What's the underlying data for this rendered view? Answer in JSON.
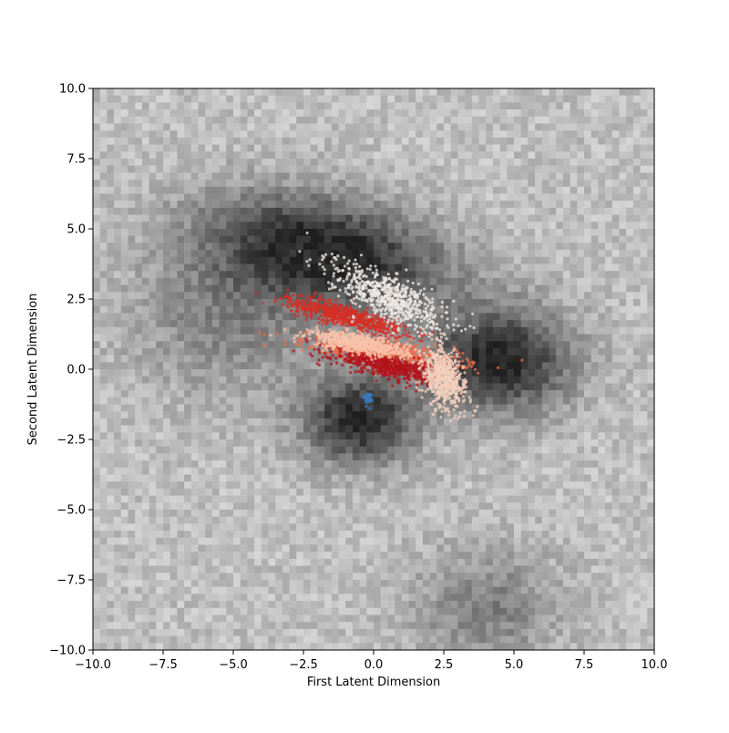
{
  "chart_data": {
    "type": "heatmap",
    "title": "",
    "xlabel": "First Latent Dimension",
    "ylabel": "Second Latent Dimension",
    "xlim": [
      -10.0,
      10.0
    ],
    "ylim": [
      -10.0,
      10.0
    ],
    "x_ticks": [
      "−10.0",
      "−7.5",
      "−5.0",
      "−2.5",
      "0.0",
      "2.5",
      "5.0",
      "7.5",
      "10.0"
    ],
    "y_ticks": [
      "10.0",
      "7.5",
      "5.0",
      "2.5",
      "0.0",
      "−2.5",
      "−5.0",
      "−7.5",
      "−10.0"
    ],
    "x_tick_values": [
      -10,
      -7.5,
      -5,
      -2.5,
      0,
      2.5,
      5,
      7.5,
      10
    ],
    "y_tick_values": [
      10,
      7.5,
      5,
      2.5,
      0,
      -2.5,
      -5,
      -7.5,
      -10
    ],
    "grid": false,
    "legend": "none",
    "background_colormap": "grays",
    "background_bins": 80,
    "background_density_regions": [
      {
        "shade": "dark",
        "center": [
          -1.5,
          4.2
        ],
        "spread": [
          3.0,
          1.3
        ],
        "rotation_deg": -12
      },
      {
        "shade": "dark",
        "center": [
          4.5,
          0.3
        ],
        "spread": [
          1.8,
          1.3
        ],
        "rotation_deg": 0
      },
      {
        "shade": "dark",
        "center": [
          -0.5,
          -1.8
        ],
        "spread": [
          1.4,
          1.1
        ],
        "rotation_deg": 0
      },
      {
        "shade": "mid",
        "center": [
          -5.0,
          2.0
        ],
        "spread": [
          2.5,
          2.0
        ],
        "rotation_deg": 0
      },
      {
        "shade": "mid",
        "center": [
          4.0,
          -8.5
        ],
        "spread": [
          1.8,
          1.5
        ],
        "rotation_deg": 0
      }
    ],
    "overlay_clusters": [
      {
        "color": "#d62f26",
        "center": [
          -1.0,
          1.9
        ],
        "spread": [
          2.0,
          0.35
        ],
        "rotation_deg": -15
      },
      {
        "color": "#ef6c4b",
        "center": [
          0.3,
          0.6
        ],
        "spread": [
          2.5,
          0.35
        ],
        "rotation_deg": -8
      },
      {
        "color": "#b3131a",
        "center": [
          0.6,
          0.1
        ],
        "spread": [
          1.9,
          0.35
        ],
        "rotation_deg": -12
      },
      {
        "color": "#f8c2a8",
        "center": [
          -0.5,
          0.9
        ],
        "spread": [
          1.6,
          0.3
        ],
        "rotation_deg": -10
      },
      {
        "color": "#f3d0bd",
        "center": [
          2.5,
          -0.3
        ],
        "spread": [
          0.6,
          1.0
        ],
        "rotation_deg": 20
      },
      {
        "color": "#efeae6",
        "center": [
          0.5,
          2.6
        ],
        "spread": [
          2.0,
          0.7
        ],
        "rotation_deg": -25
      },
      {
        "color": "#3b78b5",
        "center": [
          -0.2,
          -1.05
        ],
        "spread": [
          0.12,
          0.18
        ],
        "rotation_deg": 0
      }
    ]
  }
}
